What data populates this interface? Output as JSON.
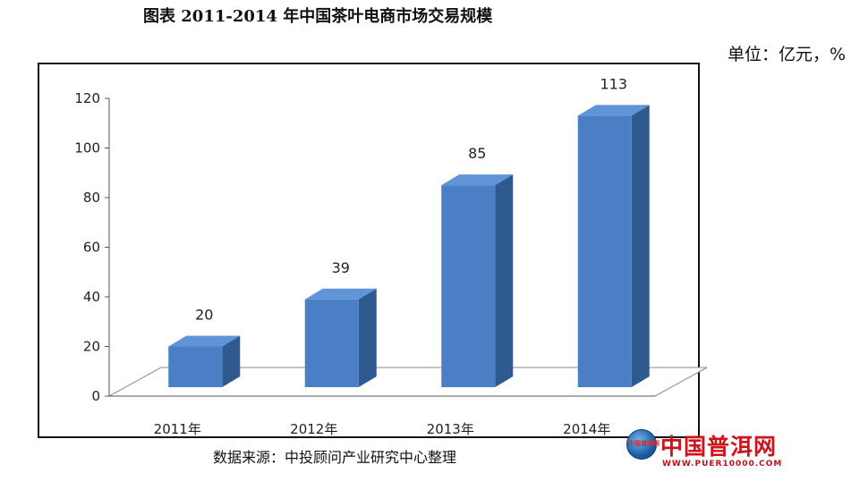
{
  "title": "图表   2011-2014 年中国茶叶电商市场交易规模",
  "unit_label": "单位：亿元，%",
  "source": "数据来源：中投顾问产业研究中心整理",
  "watermark": {
    "circle_text": "中国普洱网",
    "name": "中国普洱网",
    "url": "WWW.PUER10000.COM"
  },
  "colors": {
    "bar_front": "#4a7fc5",
    "bar_side": "#2e5a8f",
    "bar_top": "#5f94d6",
    "floor": "#ffffff",
    "axis": "#555555"
  },
  "chart_data": {
    "type": "bar",
    "categories": [
      "2011年",
      "2012年",
      "2013年",
      "2014年"
    ],
    "values": [
      20,
      39,
      85,
      113
    ],
    "ylim": [
      0,
      120
    ],
    "yticks": [
      0,
      20,
      40,
      60,
      80,
      100,
      120
    ],
    "grid": false,
    "legend": "none",
    "three_d": true
  }
}
